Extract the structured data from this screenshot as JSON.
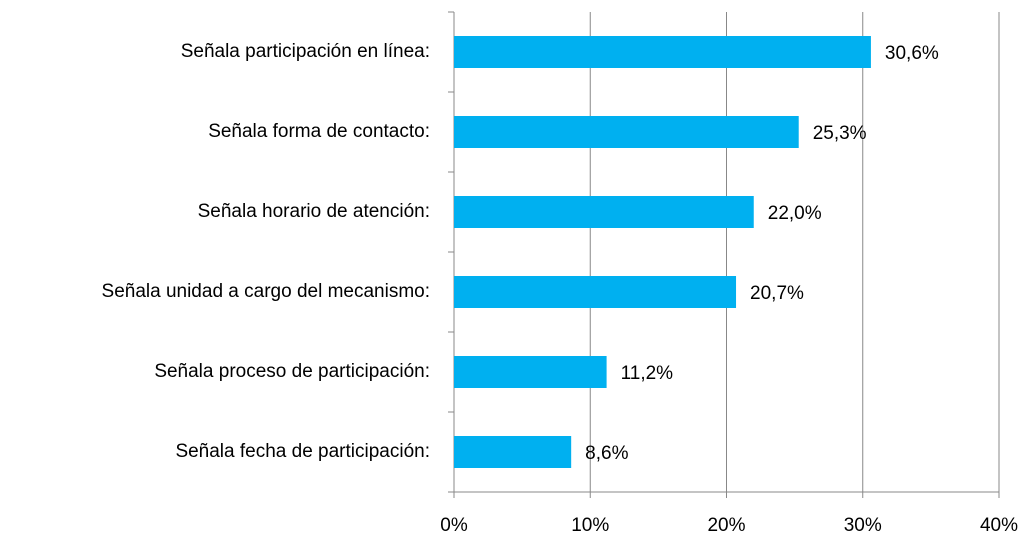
{
  "chart_data": {
    "type": "bar",
    "orientation": "horizontal",
    "categories": [
      "Señala participación en línea:",
      "Señala forma de contacto:",
      "Señala horario de atención:",
      "Señala unidad a cargo del mecanismo:",
      "Señala proceso de participación:",
      "Señala fecha de participación:"
    ],
    "values": [
      30.6,
      25.3,
      22.0,
      20.7,
      11.2,
      8.6
    ],
    "value_labels": [
      "30,6%",
      "25,3%",
      "22,0%",
      "20,7%",
      "11,2%",
      "8,6%"
    ],
    "color": "#00b0f0",
    "xlim": [
      0,
      40
    ],
    "xticks": [
      {
        "value": 0,
        "label": "0%"
      },
      {
        "value": 10,
        "label": "10%"
      },
      {
        "value": 20,
        "label": "20%"
      },
      {
        "value": 30,
        "label": "30%"
      },
      {
        "value": 40,
        "label": "40%"
      }
    ],
    "grid": true
  }
}
